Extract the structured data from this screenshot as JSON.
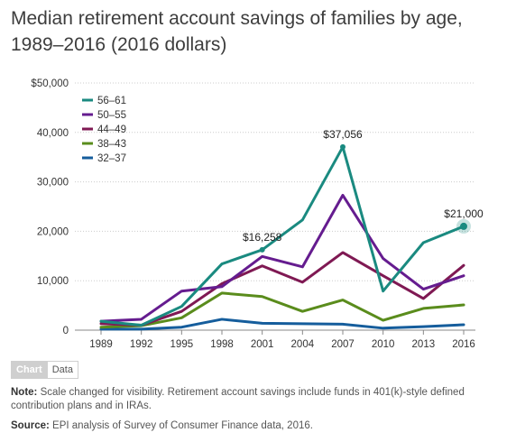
{
  "title": "Median retirement account savings of families by age, 1989–2016 (2016 dollars)",
  "tabs": [
    {
      "label": "Chart",
      "active": true
    },
    {
      "label": "Data",
      "active": false
    }
  ],
  "note": {
    "label": "Note:",
    "text": " Scale changed for visibility. Retirement account savings include funds in 401(k)-style defined contribution plans and in IRAs."
  },
  "source": {
    "label": "Source:",
    "text": " EPI analysis of Survey of Consumer Finance data, 2016."
  },
  "chart_data": {
    "type": "line",
    "x": [
      1989,
      1992,
      1995,
      1998,
      2001,
      2004,
      2007,
      2010,
      2013,
      2016
    ],
    "ylim": [
      0,
      50000
    ],
    "yticks": [
      {
        "value": 0,
        "label": "0"
      },
      {
        "value": 10000,
        "label": "10,000"
      },
      {
        "value": 20000,
        "label": "20,000"
      },
      {
        "value": 30000,
        "label": "30,000"
      },
      {
        "value": 40000,
        "label": "40,000"
      },
      {
        "value": 50000,
        "label": "$50,000"
      }
    ],
    "legend_position": "top-left",
    "series": [
      {
        "name": "56–61",
        "color": "#1a8a80",
        "values": [
          1800,
          1000,
          4800,
          13400,
          16258,
          22300,
          37056,
          7900,
          17700,
          21000
        ]
      },
      {
        "name": "50–55",
        "color": "#651c8f",
        "values": [
          1800,
          2200,
          7900,
          8800,
          14900,
          12800,
          27300,
          14500,
          8300,
          11000
        ]
      },
      {
        "name": "44–49",
        "color": "#7f1953",
        "values": [
          1300,
          1000,
          3800,
          9400,
          13000,
          9700,
          15700,
          11000,
          6400,
          13100
        ]
      },
      {
        "name": "38–43",
        "color": "#5a8c1c",
        "values": [
          600,
          900,
          2500,
          7500,
          6800,
          3800,
          6100,
          2000,
          4400,
          5100
        ]
      },
      {
        "name": "32–37",
        "color": "#155d9c",
        "values": [
          200,
          200,
          600,
          2200,
          1400,
          1300,
          1200,
          400,
          700,
          1100
        ]
      }
    ],
    "annotations": [
      {
        "text": "$16,258",
        "series": 0,
        "x": 2001
      },
      {
        "text": "$37,056",
        "series": 0,
        "x": 2007
      },
      {
        "text": "$21,000",
        "series": 0,
        "x": 2016,
        "highlight": true
      }
    ]
  }
}
